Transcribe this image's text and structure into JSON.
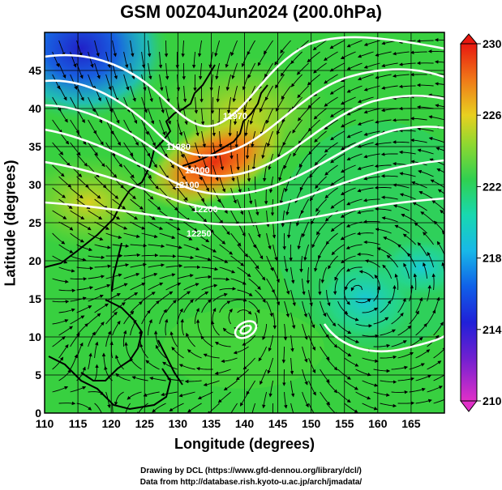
{
  "title": "GSM 00Z04Jun2024 (200.0hPa)",
  "x_axis": {
    "label": "Longitude (degrees)",
    "ticks": [
      110,
      115,
      120,
      125,
      130,
      135,
      140,
      145,
      150,
      155,
      160,
      165
    ],
    "range": [
      110,
      170
    ]
  },
  "y_axis": {
    "label": "Latitude  (degrees)",
    "ticks": [
      0,
      5,
      10,
      15,
      20,
      25,
      30,
      35,
      40,
      45
    ],
    "range": [
      0,
      50
    ]
  },
  "colorbar": {
    "ticks": [
      210,
      214,
      218,
      222,
      226,
      230
    ],
    "range": [
      210,
      230
    ],
    "colors": [
      "#e838c8",
      "#2020d8",
      "#1aa0e8",
      "#18d8c8",
      "#30d060",
      "#9ad830",
      "#e8d020",
      "#f08018",
      "#e82010"
    ]
  },
  "contour_labels": [
    "11970",
    "11980",
    "12000",
    "12100",
    "12200",
    "12250"
  ],
  "credits": {
    "line1": "Drawing by DCL (https://www.gfd-dennou.org/library/dcl/)",
    "line2": "Data from http://database.rish.kyoto-u.ac.jp/arch/jmadata/"
  },
  "chart_data": {
    "type": "heatmap",
    "title": "GSM 00Z04Jun2024 (200.0hPa)",
    "xlabel": "Longitude (degrees)",
    "ylabel": "Latitude  (degrees)",
    "xlim": [
      110,
      170
    ],
    "ylim": [
      0,
      50
    ],
    "value_range": [
      210,
      230
    ],
    "grid": true,
    "features": {
      "warm_max": {
        "lon": 137,
        "lat": 36,
        "value": 228
      },
      "cold_min": {
        "lon": 118,
        "lat": 46,
        "value": 214
      },
      "cool_pool_east": {
        "lon": 157,
        "lat": 16,
        "value": 218
      },
      "cyclone_center": {
        "lon": 140,
        "lat": 12.5
      }
    }
  }
}
